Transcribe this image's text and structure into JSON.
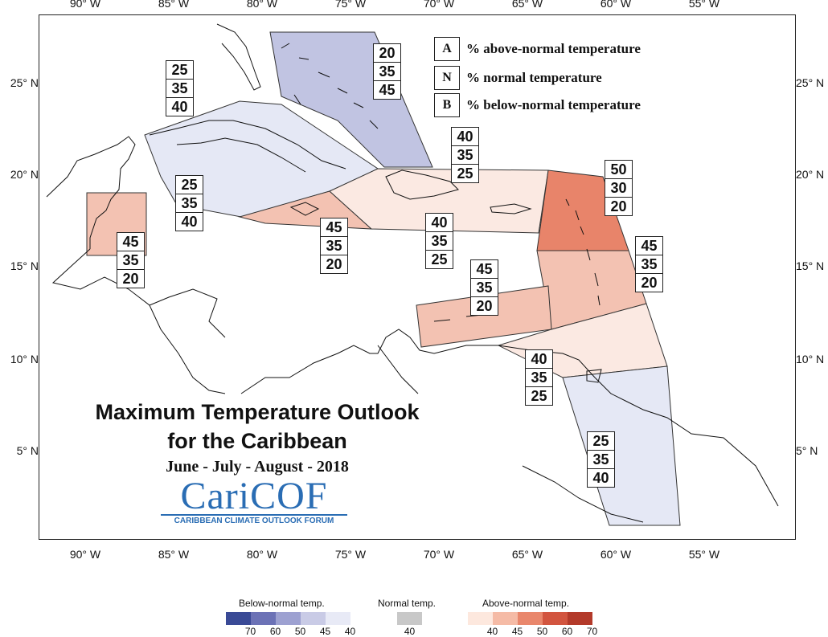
{
  "map": {
    "lon_ticks": [
      "90° W",
      "85° W",
      "80° W",
      "75° W",
      "70° W",
      "65° W",
      "60° W",
      "55° W"
    ],
    "lat_ticks": [
      "25° N",
      "20° N",
      "15° N",
      "10° N",
      "5° N"
    ]
  },
  "key": {
    "rows": [
      {
        "letter": "A",
        "text": "% above-normal temperature"
      },
      {
        "letter": "N",
        "text": "% normal temperature"
      },
      {
        "letter": "B",
        "text": "% below-normal temperature"
      }
    ]
  },
  "title": {
    "line1": "Maximum Temperature Outlook",
    "line2": "for the Caribbean",
    "period": "June - July - August - 2018"
  },
  "logo": {
    "word": "CariCOF",
    "tagline": "CARIBBEAN CLIMATE OUTLOOK FORUM"
  },
  "regions": [
    {
      "id": "bahamas",
      "probs": [
        "20",
        "35",
        "45"
      ],
      "color": "#c1c4e2"
    },
    {
      "id": "cuba-cayman",
      "probs": [
        "25",
        "35",
        "40"
      ],
      "color": "#e5e8f5"
    },
    {
      "id": "belize",
      "probs": [
        "45",
        "35",
        "20"
      ],
      "color": "#f3c2b2"
    },
    {
      "id": "hispaniola-pr",
      "probs": [
        "40",
        "35",
        "25"
      ],
      "color": "#fbe9e2"
    },
    {
      "id": "jamaica",
      "probs": [
        "45",
        "35",
        "20"
      ],
      "color": "#f3c2b2"
    },
    {
      "id": "cuba-east",
      "probs": [
        "25",
        "35",
        "40"
      ],
      "color": "#e5e8f5"
    },
    {
      "id": "hispaniola-south",
      "probs": [
        "40",
        "35",
        "25"
      ],
      "color": "#fbe9e2"
    },
    {
      "id": "leeward",
      "probs": [
        "50",
        "30",
        "20"
      ],
      "color": "#e8846a"
    },
    {
      "id": "windward",
      "probs": [
        "45",
        "35",
        "20"
      ],
      "color": "#f3c2b2"
    },
    {
      "id": "abc-islands",
      "probs": [
        "45",
        "35",
        "20"
      ],
      "color": "#f3c2b2"
    },
    {
      "id": "trinidad",
      "probs": [
        "40",
        "35",
        "25"
      ],
      "color": "#fbe9e2"
    },
    {
      "id": "guianas",
      "probs": [
        "25",
        "35",
        "40"
      ],
      "color": "#e5e8f5"
    }
  ],
  "colorbar": {
    "below_label": "Below-normal temp.",
    "normal_label": "Normal temp.",
    "above_label": "Above-normal temp.",
    "below_colors": [
      "#3a4a96",
      "#6c72b6",
      "#9da1d1",
      "#c9cbe6",
      "#e8eaf6"
    ],
    "below_values": [
      "70",
      "60",
      "50",
      "45",
      "40"
    ],
    "normal_color": "#c8c8c8",
    "normal_value": "40",
    "above_colors": [
      "#fde8de",
      "#f5bba6",
      "#e9876c",
      "#d2553f",
      "#b33a2a"
    ],
    "above_values": [
      "40",
      "45",
      "50",
      "60",
      "70"
    ]
  }
}
